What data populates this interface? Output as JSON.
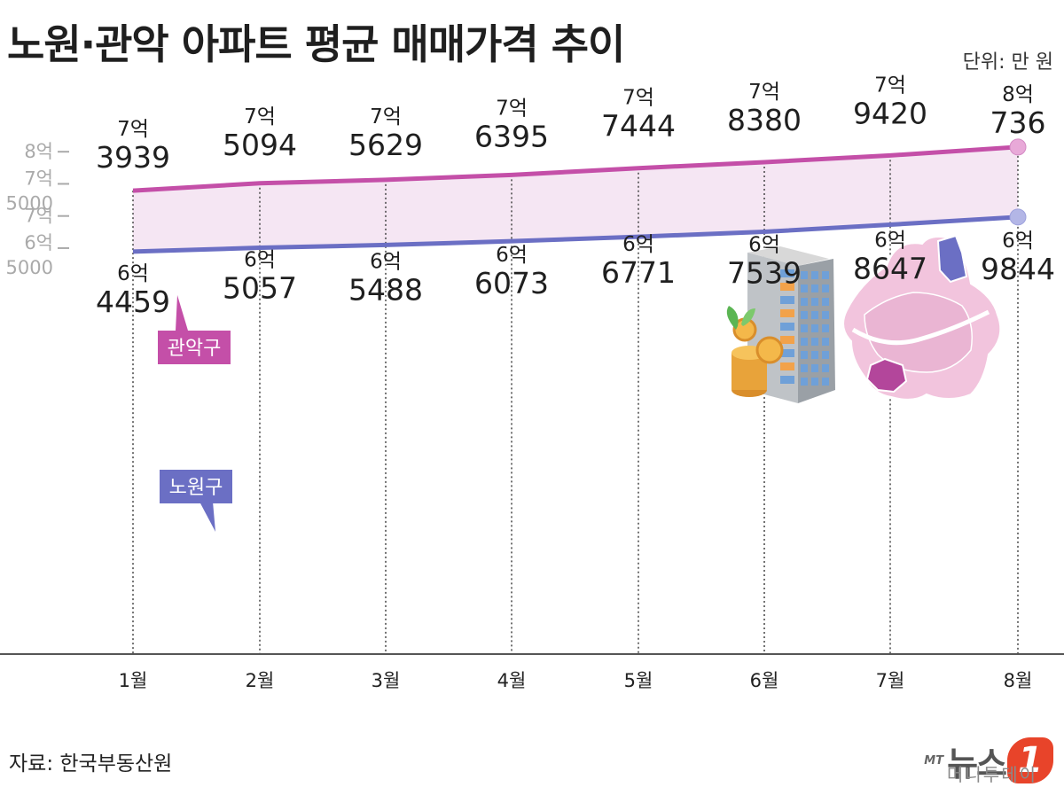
{
  "header": {
    "title": "노원·관악 아파트 평균 매매가격 추이",
    "unit": "단위: 만 원"
  },
  "footer": {
    "source": "자료: 한국부동산원",
    "logo_prefix": "MT",
    "logo_name": "뉴스",
    "logo_number": "1",
    "logo_sub": "머니투데이"
  },
  "chart_data": {
    "type": "line",
    "title": "노원·관악 아파트 평균 매매가격 추이",
    "unit": "단위: 만 원",
    "categories": [
      "1월",
      "2월",
      "3월",
      "4월",
      "5월",
      "6월",
      "7월",
      "8월"
    ],
    "ylim": [
      62000,
      82000
    ],
    "y_ticks": [
      {
        "value": 80000,
        "lines": [
          "8억"
        ]
      },
      {
        "value": 75000,
        "lines": [
          "7억",
          "5000"
        ]
      },
      {
        "value": 70000,
        "lines": [
          "7억"
        ]
      },
      {
        "value": 65000,
        "lines": [
          "6억",
          "5000"
        ]
      }
    ],
    "series": [
      {
        "name": "관악구",
        "color": "#c44fa8",
        "values": [
          73939,
          75094,
          75629,
          76395,
          77444,
          78380,
          79420,
          80736
        ],
        "labels": [
          [
            "7억",
            "3939"
          ],
          [
            "7억",
            "5094"
          ],
          [
            "7억",
            "5629"
          ],
          [
            "7억",
            "6395"
          ],
          [
            "7억",
            "7444"
          ],
          [
            "7억",
            "8380"
          ],
          [
            "7억",
            "9420"
          ],
          [
            "8억",
            "736"
          ]
        ]
      },
      {
        "name": "노원구",
        "color": "#6b6fc4",
        "values": [
          64459,
          65057,
          65488,
          66073,
          66771,
          67539,
          68647,
          69844
        ],
        "labels": [
          [
            "6억",
            "4459"
          ],
          [
            "6억",
            "5057"
          ],
          [
            "6억",
            "5488"
          ],
          [
            "6억",
            "6073"
          ],
          [
            "6억",
            "6771"
          ],
          [
            "6억",
            "7539"
          ],
          [
            "6억",
            "8647"
          ],
          [
            "6억",
            "9844"
          ]
        ]
      }
    ],
    "grid": "vertical dotted lines at each month",
    "fill_between": "#f5e6f3"
  }
}
